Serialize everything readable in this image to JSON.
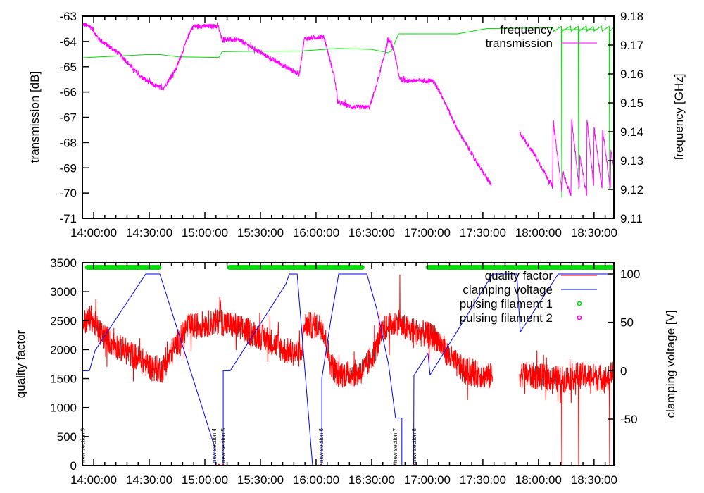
{
  "chart_data": [
    {
      "type": "line",
      "x_unit": "minutes after 14:00:00",
      "xlim": [
        -6.1,
        280.7
      ],
      "x_ticks": [
        "14:00:00",
        "14:30:00",
        "15:00:00",
        "15:30:00",
        "16:00:00",
        "16:30:00",
        "17:00:00",
        "17:30:00",
        "18:00:00",
        "18:30:00"
      ],
      "x_tick_values": [
        0,
        30,
        60,
        90,
        120,
        150,
        180,
        210,
        240,
        270
      ],
      "ylabel": "transmission [dB]",
      "ylim": [
        -71,
        -63
      ],
      "y_ticks": [
        "-63",
        "-64",
        "-65",
        "-66",
        "-67",
        "-68",
        "-69",
        "-70",
        "-71"
      ],
      "y_tick_values": [
        -63,
        -64,
        -65,
        -66,
        -67,
        -68,
        -69,
        -70,
        -71
      ],
      "y2label": "frequency [GHz]",
      "y2lim": [
        9.11,
        9.18
      ],
      "y2_ticks": [
        "9.18",
        "9.17",
        "9.16",
        "9.15",
        "9.14",
        "9.13",
        "9.12",
        "9.11"
      ],
      "y2_tick_values": [
        9.18,
        9.17,
        9.16,
        9.15,
        9.14,
        9.13,
        9.12,
        9.11
      ],
      "legend_position": "top-right",
      "series": [
        {
          "name": "frequency",
          "axis": "y2",
          "color": "#00dd00",
          "noise": 0,
          "segments": [
            [
              [
                -6.1,
                9.1656
              ],
              [
                28.5,
                9.1667
              ],
              [
                36,
                9.1667
              ],
              [
                46,
                9.1659
              ],
              [
                67.5,
                9.1657
              ],
              [
                69.3,
                9.1677
              ],
              [
                79,
                9.1678
              ],
              [
                112.7,
                9.168
              ],
              [
                131.8,
                9.1688
              ],
              [
                150,
                9.1685
              ],
              [
                159.1,
                9.1673
              ],
              [
                161,
                9.1684
              ],
              [
                164.5,
                9.1739
              ],
              [
                196.4,
                9.1739
              ],
              [
                212,
                9.1757
              ],
              [
                247.6,
                9.176
              ],
              [
                248.3,
                9.1748
              ],
              [
                252.4,
                9.1765
              ],
              [
                252.6,
                9.1173
              ],
              [
                252.8,
                9.1748
              ],
              [
                257.3,
                9.1766
              ],
              [
                257.6,
                9.1748
              ],
              [
                261.5,
                9.1765
              ],
              [
                261.7,
                9.12
              ],
              [
                261.9,
                9.1748
              ],
              [
                265.8,
                9.1766
              ],
              [
                266.1,
                9.1748
              ],
              [
                269.6,
                9.1765
              ],
              [
                270,
                9.1748
              ],
              [
                274,
                9.1766
              ],
              [
                274.4,
                9.1748
              ],
              [
                278.2,
                9.1765
              ],
              [
                278.4,
                9.12
              ],
              [
                278.6,
                9.1748
              ],
              [
                280.7,
                9.1762
              ]
            ]
          ]
        },
        {
          "name": "transmission",
          "axis": "y",
          "color": "#ff00ff",
          "noise": 0.09,
          "segments": [
            [
              [
                -6.1,
                -63.3
              ],
              [
                -1.1,
                -63.45
              ],
              [
                2.7,
                -63.9
              ],
              [
                14,
                -64.5
              ],
              [
                25.4,
                -65.4
              ],
              [
                33,
                -65.75
              ],
              [
                37.6,
                -65.85
              ],
              [
                44.4,
                -65.1
              ],
              [
                52,
                -63.6
              ],
              [
                53.9,
                -63.4
              ],
              [
                67.2,
                -63.4
              ],
              [
                69.1,
                -63.9
              ],
              [
                78.6,
                -63.95
              ],
              [
                93.8,
                -64.6
              ],
              [
                110.9,
                -65.3
              ],
              [
                113.6,
                -63.9
              ],
              [
                124.2,
                -63.8
              ],
              [
                129.9,
                -65.4
              ],
              [
                131.8,
                -66.4
              ],
              [
                139.4,
                -66.6
              ],
              [
                148.9,
                -66.6
              ],
              [
                152.7,
                -65.7
              ],
              [
                159.1,
                -63.9
              ],
              [
                162.2,
                -64.4
              ],
              [
                164.8,
                -65.4
              ],
              [
                166.7,
                -65.55
              ],
              [
                183,
                -65.55
              ],
              [
                186.9,
                -66
              ],
              [
                196.4,
                -67.5
              ],
              [
                207.7,
                -68.9
              ],
              [
                214.6,
                -69.7
              ]
            ],
            [
              [
                229.8,
                -67.6
              ],
              [
                238.1,
                -68.5
              ],
              [
                247.6,
                -69.75
              ]
            ],
            [
              [
                247.6,
                -69.75
              ],
              [
                248.0,
                -67.2
              ],
              [
                252.6,
                -69.9
              ],
              [
                253.3,
                -69.2
              ],
              [
                257.5,
                -70.1
              ],
              [
                257.9,
                -67.1
              ],
              [
                262.0,
                -69.8
              ],
              [
                262.3,
                -68.5
              ],
              [
                266.0,
                -70.1
              ],
              [
                266.2,
                -67.1
              ],
              [
                269.8,
                -69.7
              ],
              [
                270.0,
                -67.4
              ],
              [
                274.3,
                -69.8
              ],
              [
                274.6,
                -67.5
              ],
              [
                278.8,
                -69.8
              ],
              [
                279.1,
                -68.3
              ],
              [
                280.7,
                -69.0
              ]
            ]
          ]
        }
      ]
    },
    {
      "type": "line",
      "x_unit": "minutes after 14:00:00",
      "xlim": [
        -6.1,
        280.7
      ],
      "x_ticks": [
        "14:00:00",
        "14:30:00",
        "15:00:00",
        "15:30:00",
        "16:00:00",
        "16:30:00",
        "17:00:00",
        "17:30:00",
        "18:00:00",
        "18:30:00"
      ],
      "x_tick_values": [
        0,
        30,
        60,
        90,
        120,
        150,
        180,
        210,
        240,
        270
      ],
      "ylabel": "quality factor",
      "ylim": [
        0,
        3500
      ],
      "y_ticks": [
        "0",
        "500",
        "1000",
        "1500",
        "2000",
        "2500",
        "3000",
        "3500"
      ],
      "y_tick_values": [
        0,
        500,
        1000,
        1500,
        2000,
        2500,
        3000,
        3500
      ],
      "y2label": "clamping voltage [V]",
      "y2lim": [
        -98.3,
        111.4
      ],
      "y2_ticks": [
        "100",
        "50",
        "0",
        "-50"
      ],
      "y2_tick_values": [
        100,
        50,
        0,
        -50
      ],
      "legend_position": "top-right",
      "series": [
        {
          "name": "quality factor",
          "axis": "y",
          "color": "#ff0000",
          "noise": 230,
          "segments": [
            [
              [
                -6.1,
                2450
              ],
              [
                -1.1,
                2550
              ],
              [
                2.7,
                2320
              ],
              [
                10.3,
                2100
              ],
              [
                21.6,
                1900
              ],
              [
                31.1,
                1700
              ],
              [
                36.8,
                1650
              ],
              [
                44.4,
                2080
              ],
              [
                50.1,
                2380
              ],
              [
                59.6,
                2440
              ],
              [
                67.2,
                2480
              ],
              [
                68.4,
                2850
              ],
              [
                68.7,
                2480
              ],
              [
                74.8,
                2420
              ],
              [
                93.8,
                2180
              ],
              [
                103.3,
                1980
              ],
              [
                112,
                1920
              ],
              [
                113.6,
                2430
              ],
              [
                123.4,
                2400
              ],
              [
                128,
                1750
              ],
              [
                131.8,
                1570
              ],
              [
                143.2,
                1600
              ],
              [
                147,
                1700
              ],
              [
                152.7,
                2050
              ],
              [
                156.5,
                2360
              ],
              [
                162.2,
                2430
              ],
              [
                165.1,
                2500
              ],
              [
                165.2,
                3290
              ],
              [
                165.4,
                2400
              ],
              [
                169.8,
                2350
              ],
              [
                177.4,
                2280
              ],
              [
                185,
                2200
              ],
              [
                192.6,
                1850
              ],
              [
                200.2,
                1620
              ],
              [
                215.3,
                1530
              ]
            ],
            [
              [
                229.8,
                1580
              ],
              [
                252.4,
                1480
              ],
              [
                252.6,
                0
              ],
              [
                252.8,
                1480
              ],
              [
                261.5,
                1560
              ],
              [
                261.7,
                0
              ],
              [
                261.9,
                1560
              ],
              [
                278.2,
                1500
              ],
              [
                278.4,
                0
              ],
              [
                278.6,
                1600
              ],
              [
                280.7,
                1650
              ]
            ]
          ]
        },
        {
          "name": "clamping voltage",
          "axis": "y2",
          "color": "#0000ff",
          "noise": 0,
          "segments": [
            [
              [
                -6.1,
                0
              ],
              [
                -2.3,
                0
              ],
              [
                0.8,
                21
              ],
              [
                28.1,
                100
              ],
              [
                35.7,
                100
              ],
              [
                65.3,
                -79
              ],
              [
                65.7,
                -110
              ],
              [
                69.9,
                -110
              ],
              [
                69.9,
                0
              ],
              [
                73.7,
                0
              ],
              [
                103.7,
                89.6
              ],
              [
                105.6,
                100
              ],
              [
                109.8,
                100
              ],
              [
                118.6,
                -110
              ],
              [
                123.1,
                -110
              ],
              [
                123.1,
                -8
              ],
              [
                128,
                53
              ],
              [
                132.2,
                100
              ],
              [
                147.4,
                100
              ],
              [
                152.7,
                64
              ],
              [
                159.1,
                6.6
              ],
              [
                162.9,
                -49
              ],
              [
                166.3,
                -49
              ],
              [
                166.3,
                -110
              ],
              [
                172.6,
                -110
              ],
              [
                172.8,
                -5
              ],
              [
                180.4,
                18
              ],
              [
                181.5,
                -4.4
              ],
              [
                215.3,
                100
              ],
              [
                228.3,
                100
              ],
              [
                230.2,
                40
              ],
              [
                250.7,
                100
              ],
              [
                280.7,
                100
              ]
            ]
          ]
        },
        {
          "name": "pulsing filament 1",
          "axis": "y",
          "color": "#00dd00",
          "style": "points",
          "value": 3420,
          "ranges": [
            [
              -3.4,
              35.7
            ],
            [
              73.3,
              145
            ],
            [
              180.4,
              228.3
            ],
            [
              229.4,
              280.7
            ]
          ]
        },
        {
          "name": "pulsing filament 2",
          "axis": "y",
          "color": "#ff00ff",
          "style": "points",
          "value": 3420,
          "ranges": []
        }
      ],
      "annotations": [
        {
          "x": -6.0,
          "text": "new section 3"
        },
        {
          "x": 67.6,
          "text": "new section 4"
        },
        {
          "x": 69.9,
          "text": "new section 5"
        },
        {
          "x": 122.7,
          "text": "new section 6"
        },
        {
          "x": 162.5,
          "text": "new section 7"
        },
        {
          "x": 172.8,
          "text": "new section 8"
        }
      ]
    }
  ]
}
